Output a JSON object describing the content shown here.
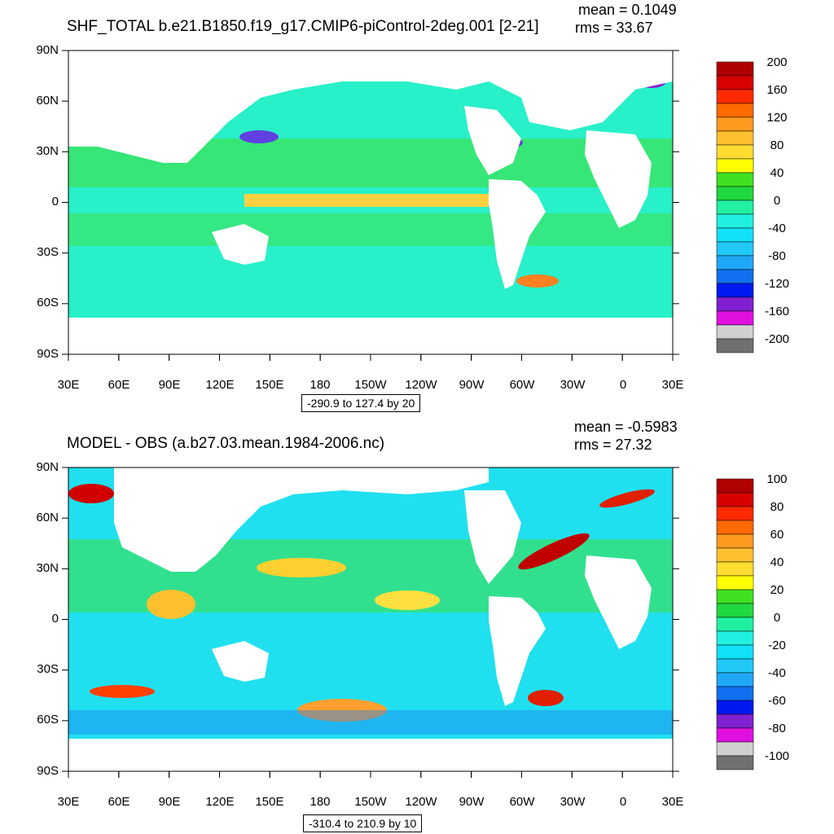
{
  "panels": [
    {
      "title": "SHF_TOTAL b.e21.B1850.f19_g17.CMIP6-piControl-2deg.001 [2-21]",
      "mean_label": "mean = 0.1049",
      "rms_label": "rms = 33.67",
      "range_label": "-290.9 to 127.4 by 20",
      "colorbar": {
        "labels": [
          "200",
          "160",
          "120",
          "80",
          "40",
          "0",
          "-40",
          "-80",
          "-120",
          "-160",
          "-200"
        ],
        "colors": [
          "#b00000",
          "#d80000",
          "#ff2a00",
          "#ff6a00",
          "#ff9a20",
          "#ffc030",
          "#ffdc30",
          "#ffff00",
          "#40e020",
          "#20d840",
          "#20f0a0",
          "#20f0e0",
          "#10e0f8",
          "#20c8f8",
          "#20a8f8",
          "#1070f0",
          "#0018f0",
          "#8020d0",
          "#e010e0",
          "#d0d0d0",
          "#707070"
        ]
      }
    },
    {
      "title": "MODEL - OBS (a.b27.03.mean.1984-2006.nc)",
      "mean_label": "mean = -0.5983",
      "rms_label": "rms = 27.32",
      "range_label": "-310.4 to 210.9 by 10",
      "colorbar": {
        "labels": [
          "100",
          "80",
          "60",
          "40",
          "20",
          "0",
          "-20",
          "-40",
          "-60",
          "-80",
          "-100"
        ],
        "colors": [
          "#b00000",
          "#d80000",
          "#ff2a00",
          "#ff6a00",
          "#ff9a20",
          "#ffc030",
          "#ffdc30",
          "#ffff00",
          "#40e020",
          "#20d840",
          "#20f0a0",
          "#20f0e0",
          "#10e0f8",
          "#20c8f8",
          "#20a8f8",
          "#1070f0",
          "#0018f0",
          "#8020d0",
          "#e010e0",
          "#d0d0d0",
          "#707070"
        ]
      }
    }
  ],
  "axes": {
    "lat_labels": [
      "90N",
      "60N",
      "30N",
      "0",
      "30S",
      "60S",
      "90S"
    ],
    "lon_labels": [
      "30E",
      "60E",
      "90E",
      "120E",
      "150E",
      "180",
      "150W",
      "120W",
      "90W",
      "60W",
      "30W",
      "0",
      "30E"
    ]
  }
}
